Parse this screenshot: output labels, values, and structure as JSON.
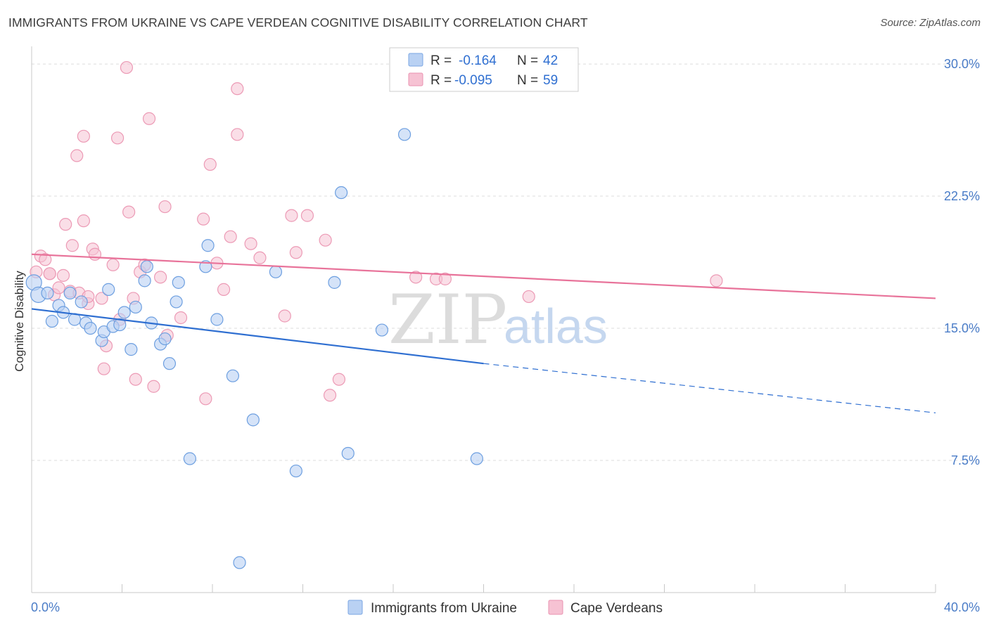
{
  "title": "IMMIGRANTS FROM UKRAINE VS CAPE VERDEAN COGNITIVE DISABILITY CORRELATION CHART",
  "source": "Source: ZipAtlas.com",
  "watermark": {
    "zip": "ZIP",
    "atlas": "atlas"
  },
  "colors": {
    "blue": "#2f6fd1",
    "blue_fill": "#b9d1f3",
    "pink": "#e8739a",
    "pink_fill": "#f6c2d3",
    "tick_text": "#4a7cc7",
    "grid": "#dddddd"
  },
  "legend_top": {
    "rows": [
      {
        "r_label": "R =",
        "r_value": "-0.164",
        "n_label": "N =",
        "n_value": "42",
        "color": "blue"
      },
      {
        "r_label": "R =",
        "r_value": "-0.095",
        "n_label": "N =",
        "n_value": "59",
        "color": "pink"
      }
    ]
  },
  "legend_bottom": {
    "items": [
      {
        "label": "Immigrants from Ukraine",
        "color": "blue"
      },
      {
        "label": "Cape Verdeans",
        "color": "pink"
      }
    ]
  },
  "chart_data": {
    "type": "scatter",
    "title": "IMMIGRANTS FROM UKRAINE VS CAPE VERDEAN COGNITIVE DISABILITY CORRELATION CHART",
    "xlabel": "",
    "ylabel": "Cognitive Disability",
    "xlim": [
      0,
      40
    ],
    "ylim": [
      0,
      31
    ],
    "x_tick_labels": [
      "0.0%",
      "40.0%"
    ],
    "y_ticks": [
      7.5,
      15.0,
      22.5,
      30.0
    ],
    "y_tick_labels": [
      "7.5%",
      "15.0%",
      "22.5%",
      "30.0%"
    ],
    "grid": "horizontal dashed",
    "legend_position": "top-center",
    "series": [
      {
        "name": "Immigrants from Ukraine",
        "color": "blue",
        "trend": {
          "x0": 0,
          "y0": 16.1,
          "x1": 20,
          "y1": 13.0,
          "dashed_to_x": 40,
          "dashed_to_y": 10.2
        },
        "points": [
          [
            0.1,
            17.6
          ],
          [
            0.3,
            16.9
          ],
          [
            0.7,
            17.0
          ],
          [
            0.9,
            15.4
          ],
          [
            1.2,
            16.3
          ],
          [
            1.4,
            15.9
          ],
          [
            1.7,
            17.0
          ],
          [
            1.9,
            15.5
          ],
          [
            2.2,
            16.5
          ],
          [
            2.4,
            15.3
          ],
          [
            2.6,
            15.0
          ],
          [
            3.1,
            14.3
          ],
          [
            3.2,
            14.8
          ],
          [
            3.4,
            17.2
          ],
          [
            3.6,
            15.1
          ],
          [
            3.9,
            15.2
          ],
          [
            4.1,
            15.9
          ],
          [
            4.4,
            13.8
          ],
          [
            4.6,
            16.2
          ],
          [
            5.0,
            17.7
          ],
          [
            5.1,
            18.5
          ],
          [
            5.3,
            15.3
          ],
          [
            5.7,
            14.1
          ],
          [
            5.9,
            14.4
          ],
          [
            6.1,
            13.0
          ],
          [
            6.4,
            16.5
          ],
          [
            6.5,
            17.6
          ],
          [
            7.0,
            7.6
          ],
          [
            7.7,
            18.5
          ],
          [
            7.8,
            19.7
          ],
          [
            8.2,
            15.5
          ],
          [
            8.9,
            12.3
          ],
          [
            9.2,
            1.7
          ],
          [
            9.8,
            9.8
          ],
          [
            10.8,
            18.2
          ],
          [
            11.7,
            6.9
          ],
          [
            13.4,
            17.6
          ],
          [
            13.7,
            22.7
          ],
          [
            14.0,
            7.9
          ],
          [
            15.5,
            14.9
          ],
          [
            16.5,
            26.0
          ],
          [
            19.7,
            7.6
          ]
        ]
      },
      {
        "name": "Cape Verdeans",
        "color": "pink",
        "trend": {
          "x0": 0,
          "y0": 19.2,
          "x1": 40,
          "y1": 16.7
        },
        "points": [
          [
            0.2,
            18.2
          ],
          [
            0.4,
            19.1
          ],
          [
            0.6,
            18.9
          ],
          [
            0.8,
            18.1
          ],
          [
            1.0,
            16.9
          ],
          [
            1.2,
            17.3
          ],
          [
            1.4,
            18.0
          ],
          [
            1.5,
            20.9
          ],
          [
            1.7,
            17.1
          ],
          [
            1.8,
            19.7
          ],
          [
            2.0,
            24.8
          ],
          [
            2.1,
            17.0
          ],
          [
            2.3,
            21.1
          ],
          [
            2.3,
            25.9
          ],
          [
            2.5,
            16.4
          ],
          [
            2.7,
            19.5
          ],
          [
            2.8,
            19.2
          ],
          [
            3.1,
            16.7
          ],
          [
            3.2,
            12.7
          ],
          [
            3.3,
            14.0
          ],
          [
            3.6,
            18.6
          ],
          [
            3.8,
            25.8
          ],
          [
            3.9,
            15.5
          ],
          [
            4.2,
            29.8
          ],
          [
            4.3,
            21.6
          ],
          [
            4.5,
            16.7
          ],
          [
            4.6,
            12.1
          ],
          [
            4.8,
            18.2
          ],
          [
            5.0,
            18.6
          ],
          [
            5.2,
            26.9
          ],
          [
            5.4,
            11.7
          ],
          [
            5.7,
            17.9
          ],
          [
            5.9,
            21.9
          ],
          [
            6.0,
            14.6
          ],
          [
            6.6,
            15.6
          ],
          [
            7.6,
            21.2
          ],
          [
            7.7,
            11.0
          ],
          [
            7.9,
            24.3
          ],
          [
            8.2,
            18.7
          ],
          [
            8.5,
            17.2
          ],
          [
            8.8,
            20.2
          ],
          [
            9.1,
            26.0
          ],
          [
            9.1,
            28.6
          ],
          [
            9.7,
            19.8
          ],
          [
            10.1,
            19.0
          ],
          [
            11.2,
            15.7
          ],
          [
            11.5,
            21.4
          ],
          [
            11.7,
            19.3
          ],
          [
            12.2,
            21.4
          ],
          [
            13.0,
            20.0
          ],
          [
            13.2,
            11.2
          ],
          [
            13.6,
            12.1
          ],
          [
            17.0,
            17.9
          ],
          [
            17.9,
            17.8
          ],
          [
            18.3,
            17.8
          ],
          [
            22.0,
            16.8
          ],
          [
            30.3,
            17.7
          ],
          [
            0.8,
            18.1
          ],
          [
            2.5,
            16.8
          ]
        ]
      }
    ]
  }
}
